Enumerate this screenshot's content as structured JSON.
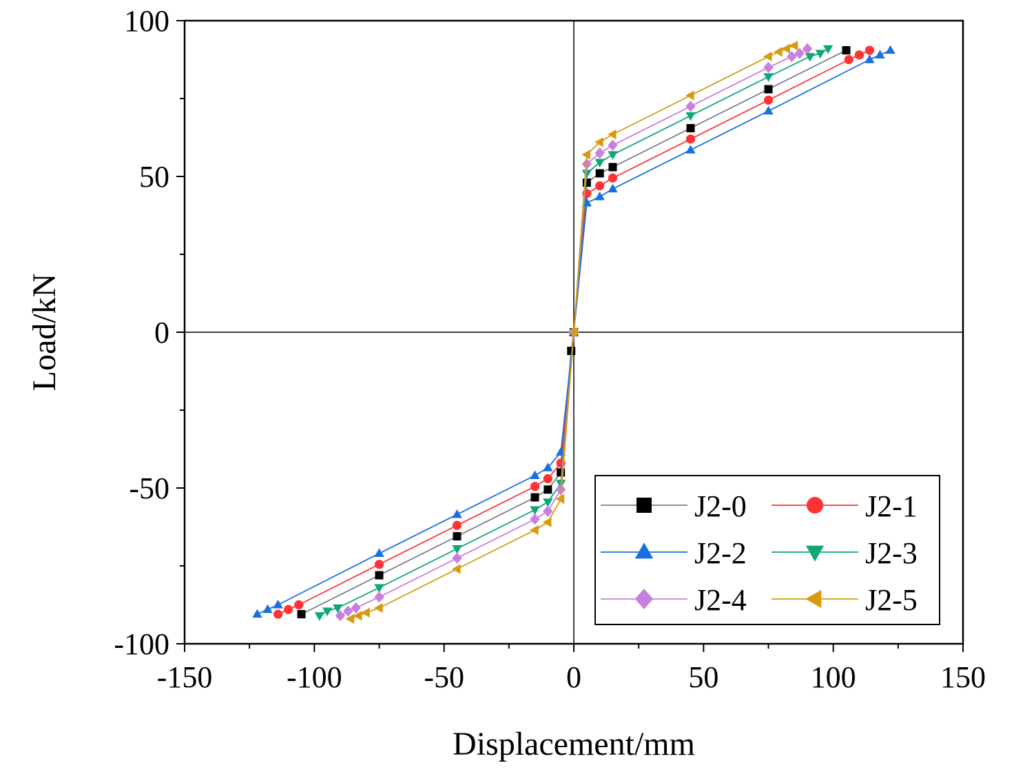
{
  "chart_data": {
    "type": "line",
    "xlabel": "Displacement/mm",
    "ylabel": "Load/kN",
    "xlim": [
      -150,
      150
    ],
    "ylim": [
      -100,
      100
    ],
    "xticks": [
      -150,
      -100,
      -50,
      0,
      50,
      100,
      150
    ],
    "yticks": [
      -100,
      -50,
      0,
      50,
      100
    ],
    "xtick_labels": [
      "-150",
      "-100",
      "-50",
      "0",
      "50",
      "100",
      "150"
    ],
    "ytick_labels": [
      "-100",
      "-50",
      "0",
      "50",
      "100"
    ],
    "grid": false,
    "legend_position": "bottom-right",
    "series": [
      {
        "name": "J2-0",
        "color": "#000000",
        "line_color": "#7f7f7f",
        "marker": "square",
        "x": [
          -105,
          -75,
          -45,
          -15,
          -10,
          -5,
          -1,
          0,
          5,
          10,
          15,
          45,
          75,
          105
        ],
        "y": [
          -90.5,
          -78,
          -65.5,
          -53,
          -50.5,
          -45,
          -6,
          0,
          48,
          51,
          53,
          65.5,
          78,
          90.5
        ]
      },
      {
        "name": "J2-1",
        "color": "#ff3333",
        "line_color": "#ff3333",
        "marker": "circle",
        "x": [
          -114,
          -110,
          -106,
          -75,
          -45,
          -15,
          -10,
          -5,
          0,
          5,
          10,
          15,
          45,
          75,
          106,
          110,
          114
        ],
        "y": [
          -90.5,
          -89,
          -87.5,
          -74.5,
          -62,
          -49.5,
          -47,
          -42,
          0,
          44.5,
          47,
          49.5,
          62,
          74.5,
          87.5,
          89,
          90.5
        ]
      },
      {
        "name": "J2-2",
        "color": "#1a6fdf",
        "line_color": "#1a6fdf",
        "marker": "triangle-up",
        "x": [
          -122,
          -118,
          -114,
          -75,
          -45,
          -15,
          -10,
          -5,
          0,
          5,
          10,
          15,
          45,
          75,
          114,
          118,
          122
        ],
        "y": [
          -90.5,
          -89,
          -87.5,
          -71,
          -58.5,
          -46,
          -43.5,
          -38.5,
          0,
          41.5,
          43.5,
          46,
          58.5,
          71,
          87.5,
          89,
          90.5
        ]
      },
      {
        "name": "J2-3",
        "color": "#0fa777",
        "line_color": "#0fa777",
        "marker": "triangle-down",
        "x": [
          -98,
          -95,
          -91,
          -75,
          -45,
          -15,
          -10,
          -5,
          0,
          5,
          10,
          15,
          45,
          75,
          91,
          95,
          98
        ],
        "y": [
          -91,
          -89.5,
          -88.5,
          -82,
          -69.5,
          -57,
          -54.5,
          -48.5,
          0,
          51,
          54.5,
          57,
          69.5,
          82,
          88.5,
          89.5,
          91
        ]
      },
      {
        "name": "J2-4",
        "color": "#c77fe0",
        "line_color": "#c77fe0",
        "marker": "diamond",
        "x": [
          -90,
          -87,
          -84,
          -75,
          -45,
          -15,
          -10,
          -5,
          0,
          5,
          10,
          15,
          45,
          75,
          84,
          87,
          90
        ],
        "y": [
          -91,
          -89.5,
          -88.5,
          -85,
          -72.5,
          -60,
          -57.5,
          -50.5,
          0,
          54,
          57.5,
          60,
          72.5,
          85,
          88.5,
          89.5,
          91
        ]
      },
      {
        "name": "J2-5",
        "color": "#d99a0e",
        "line_color": "#d99a0e",
        "marker": "triangle-left",
        "x": [
          -86,
          -83,
          -80,
          -75,
          -45,
          -15,
          -10,
          -5,
          0,
          5,
          10,
          15,
          45,
          75,
          79,
          82,
          85
        ],
        "y": [
          -92,
          -91,
          -90,
          -88.5,
          -76,
          -63.5,
          -61,
          -53.5,
          0,
          57,
          61,
          63.5,
          76,
          88.5,
          90,
          91,
          92
        ]
      }
    ]
  }
}
